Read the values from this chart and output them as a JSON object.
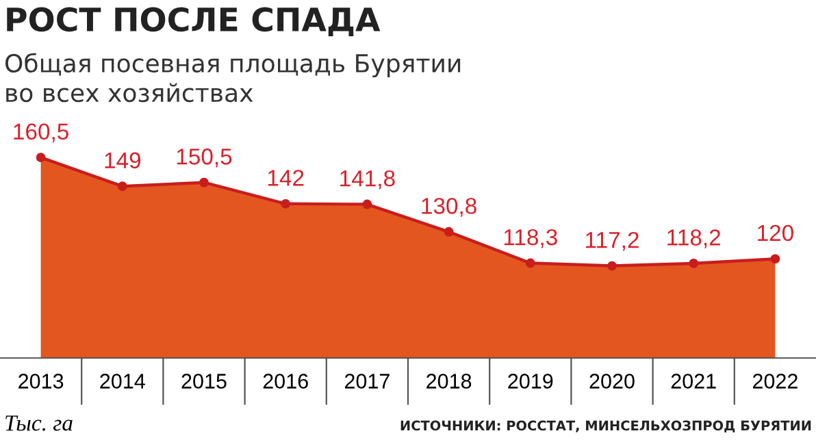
{
  "chart_data": {
    "type": "area",
    "title": "РОСТ ПОСЛЕ СПАДА",
    "subtitle": "Общая посевная площадь Бурятии\nво всех хозяйствах",
    "annotations": [
      "Тыс. га",
      "ИСТОЧНИКИ: РОССТАТ, МИНСЕЛЬХОЗПРОД БУРЯТИИ"
    ],
    "categories": [
      "2013",
      "2014",
      "2015",
      "2016",
      "2017",
      "2018",
      "2019",
      "2020",
      "2021",
      "2022"
    ],
    "series": [
      {
        "color": "#e4561f",
        "values": [
          160.5,
          149,
          150.5,
          142,
          141.8,
          130.8,
          118.3,
          117.2,
          118.2,
          120
        ],
        "value_labels": [
          "160,5",
          "149",
          "150,5",
          "142",
          "141,8",
          "130,8",
          "118,3",
          "117,2",
          "118,2",
          "120"
        ]
      }
    ],
    "marker": "circle",
    "grid": false,
    "legend": false,
    "tick_labels": "x"
  }
}
